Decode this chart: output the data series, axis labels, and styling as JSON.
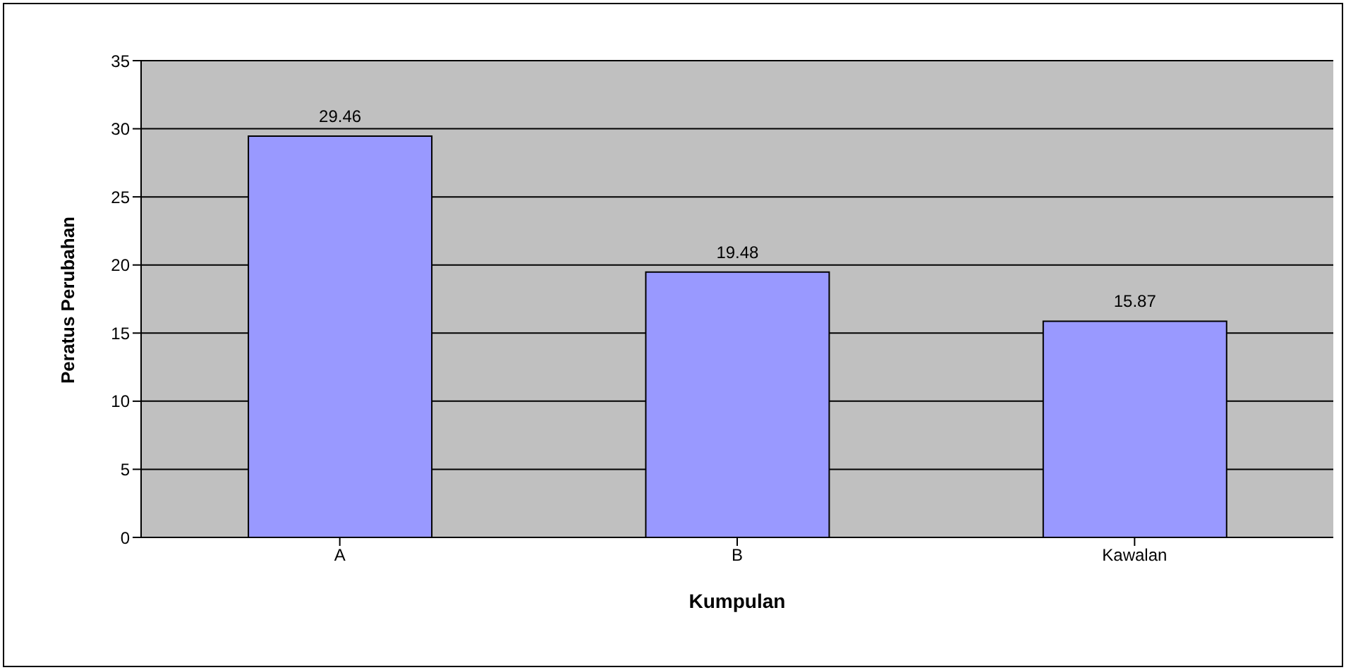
{
  "chart_data": {
    "type": "bar",
    "categories": [
      "A",
      "B",
      "Kawalan"
    ],
    "values": [
      29.46,
      19.48,
      15.87
    ],
    "color": "#9999ff",
    "xlabel": "Kumpulan",
    "ylabel": "Peratus Perubahan",
    "ylim": [
      0,
      35
    ],
    "yticks": [
      0,
      5,
      10,
      15,
      20,
      25,
      30,
      35
    ],
    "grid": "y",
    "data_labels": true
  }
}
